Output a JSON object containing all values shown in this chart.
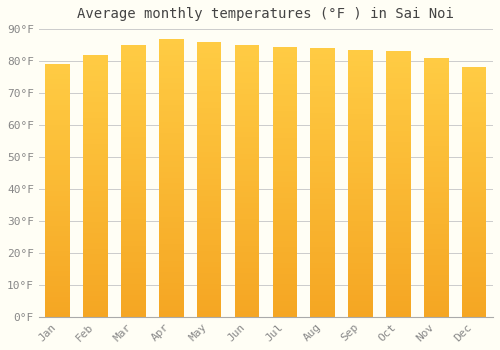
{
  "title": "Average monthly temperatures (°F ) in Sai Noi",
  "months": [
    "Jan",
    "Feb",
    "Mar",
    "Apr",
    "May",
    "Jun",
    "Jul",
    "Aug",
    "Sep",
    "Oct",
    "Nov",
    "Dec"
  ],
  "values": [
    79,
    82,
    85,
    87,
    86,
    85,
    84.5,
    84,
    83.5,
    83,
    81,
    78
  ],
  "ylim": [
    0,
    90
  ],
  "yticks": [
    0,
    10,
    20,
    30,
    40,
    50,
    60,
    70,
    80,
    90
  ],
  "ytick_labels": [
    "0°F",
    "10°F",
    "20°F",
    "30°F",
    "40°F",
    "50°F",
    "60°F",
    "70°F",
    "80°F",
    "90°F"
  ],
  "bar_color_light": "#FFCC44",
  "bar_color_dark": "#F5A623",
  "background_color": "#FFFEF5",
  "grid_color": "#CCCCCC",
  "title_fontsize": 10,
  "tick_fontsize": 8,
  "title_color": "#444444",
  "tick_color": "#888888",
  "bar_width": 0.65
}
